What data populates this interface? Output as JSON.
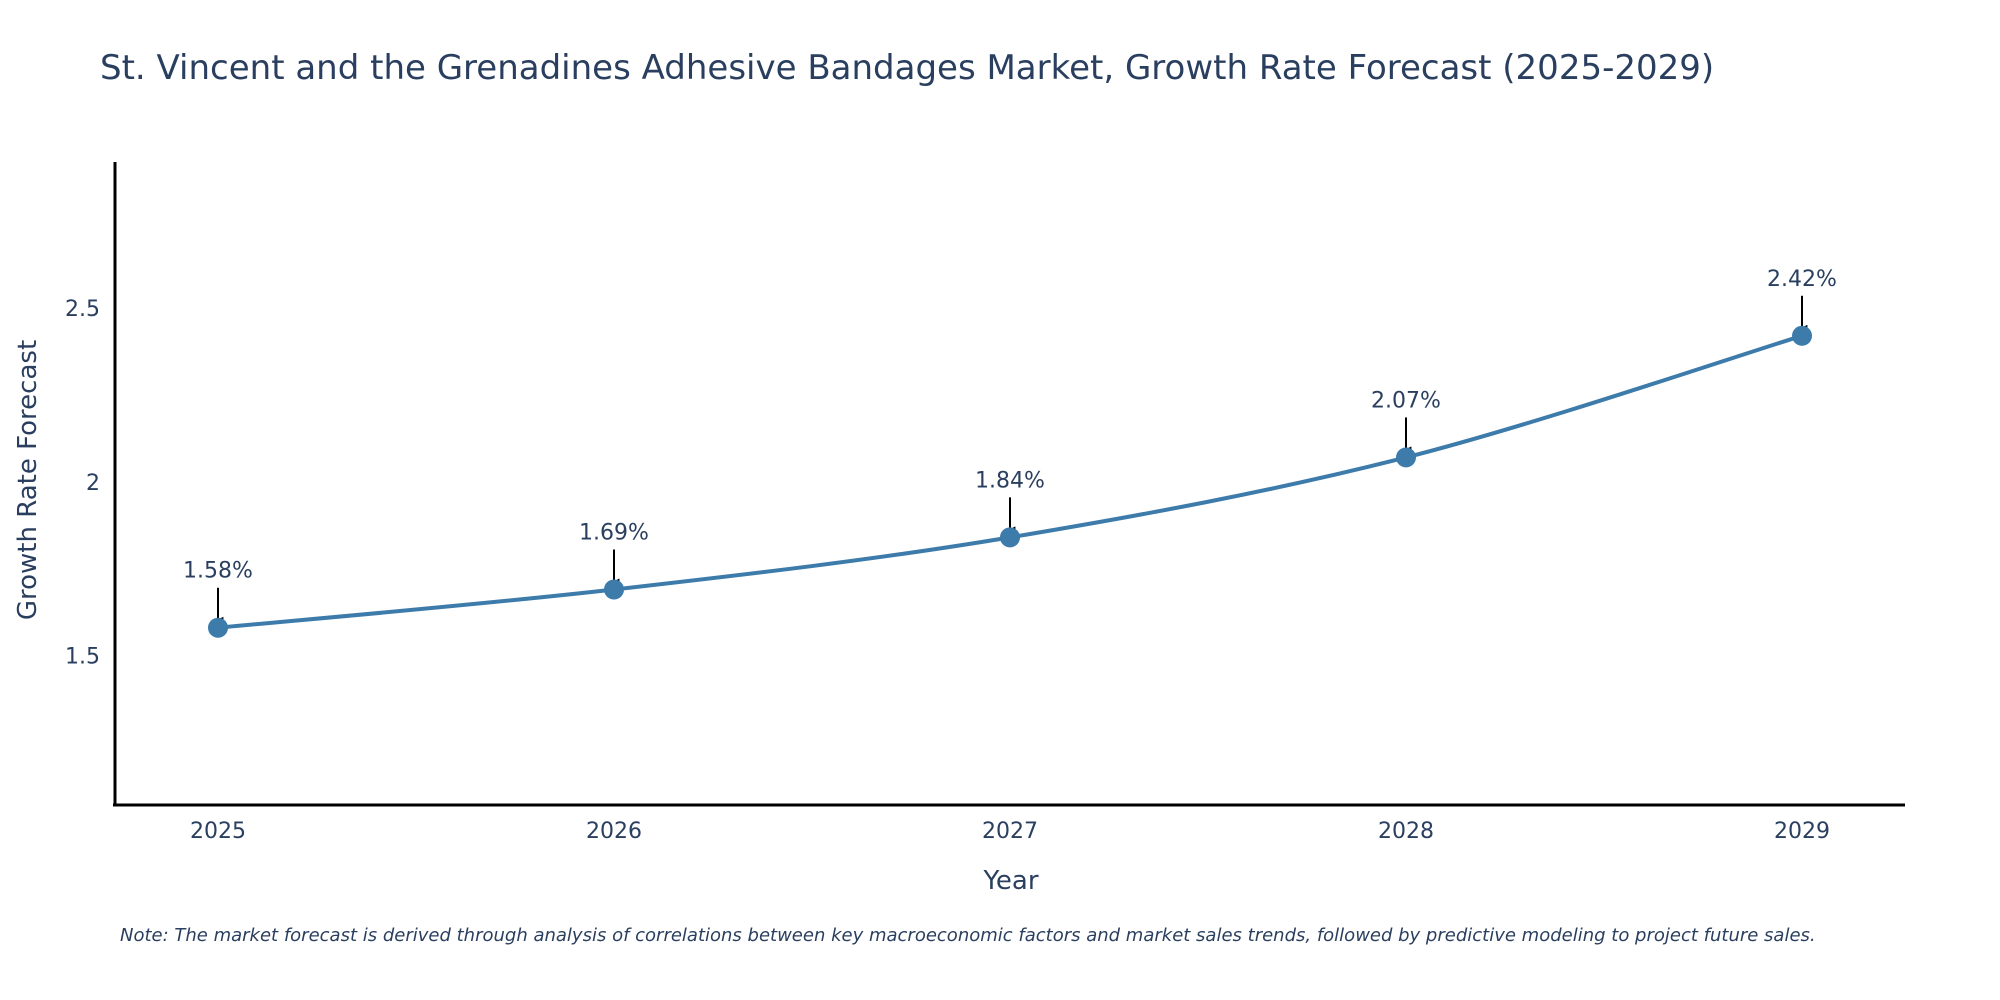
{
  "chart_data": {
    "type": "line",
    "title": "St. Vincent and the Grenadines Adhesive Bandages Market, Growth Rate Forecast (2025-2029)",
    "xlabel": "Year",
    "ylabel": "Growth Rate Forecast",
    "categories": [
      "2025",
      "2026",
      "2027",
      "2028",
      "2029"
    ],
    "series": [
      {
        "name": "Growth Rate Forecast",
        "values": [
          1.58,
          1.69,
          1.84,
          2.07,
          2.42
        ],
        "labels": [
          "1.58%",
          "1.69%",
          "1.84%",
          "2.07%",
          "2.42%"
        ]
      }
    ],
    "ylim": [
      1.07,
      2.92
    ],
    "yticks": [
      1.5,
      2,
      2.5
    ],
    "ytick_labels": [
      "1.5",
      "2",
      "2.5"
    ],
    "grid": false,
    "line_color": "#3d7bab",
    "axis_color": "#000000",
    "note": "Note: The market forecast is derived through analysis of correlations between key macroeconomic factors and market sales trends, followed by predictive modeling to project future sales."
  }
}
